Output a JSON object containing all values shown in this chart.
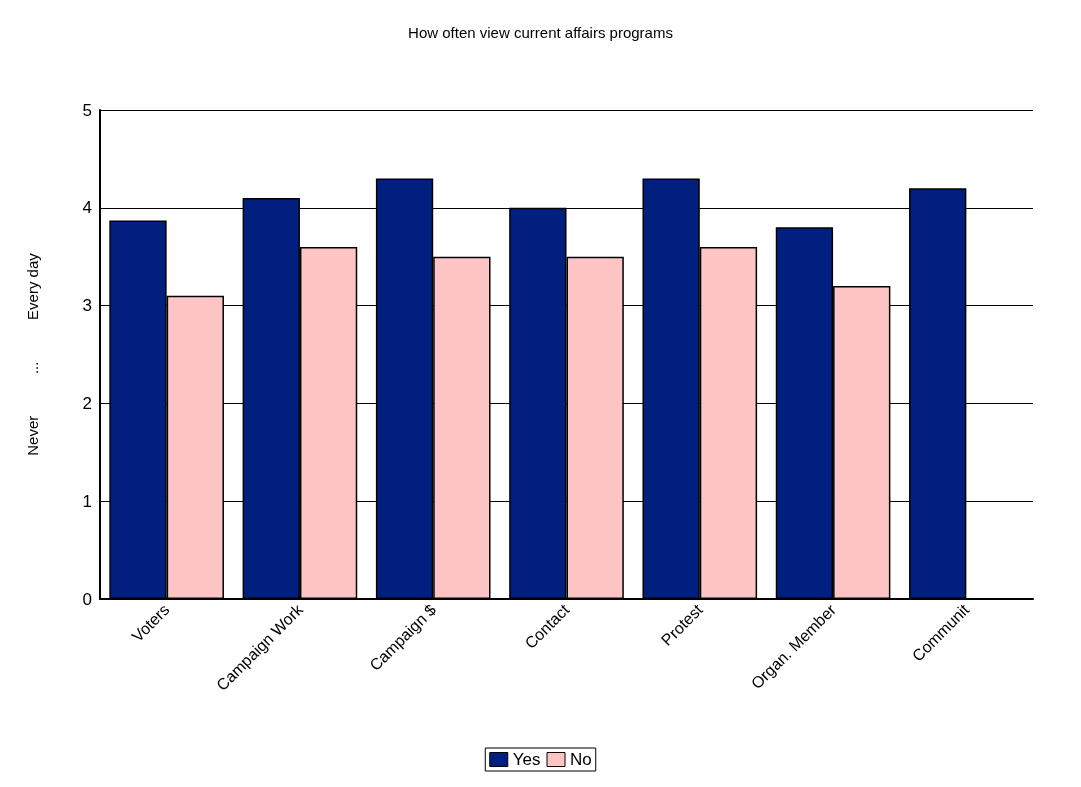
{
  "chart_data": {
    "type": "bar",
    "title": "How often view current affairs programs",
    "ylabel": "Never          ...          Every day",
    "categories": [
      "Voters",
      "Campaign Work",
      "Campaign $",
      "Contact",
      "Protest",
      "Organ. Member",
      "Communit"
    ],
    "series": [
      {
        "name": "Yes",
        "color": "#001f7f",
        "values": [
          3.87,
          4.1,
          4.3,
          4.0,
          4.3,
          3.8,
          4.2
        ]
      },
      {
        "name": "No",
        "color": "#ffc4c4",
        "values": [
          3.1,
          3.6,
          3.5,
          3.5,
          3.6,
          3.2,
          null
        ]
      }
    ],
    "ylim": [
      0,
      5
    ],
    "yticks": [
      0,
      1,
      2,
      3,
      4,
      5
    ],
    "grid": "y",
    "legend": "bottom"
  }
}
